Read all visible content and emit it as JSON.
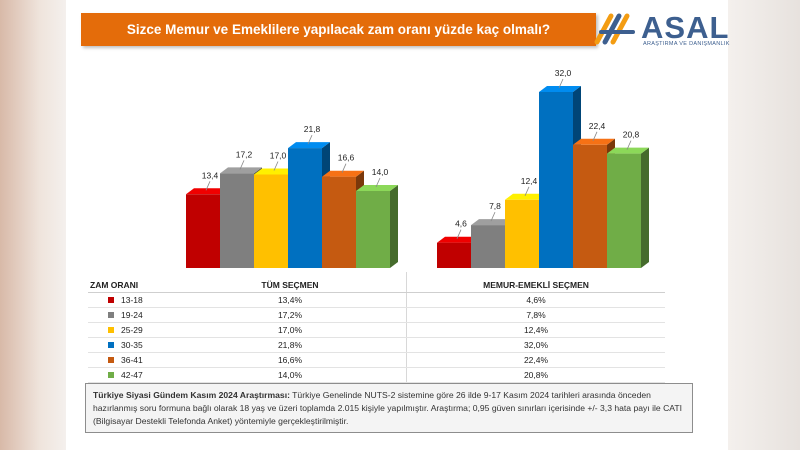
{
  "title": "Sizce Memur ve Emeklilere yapılacak zam oranı yüzde kaç olmalı?",
  "logo": {
    "word": "ASAL",
    "subtitle": "ARAŞTIRMA VE DANIŞMANLIK"
  },
  "chart_data": {
    "type": "bar",
    "categories": [
      "13-18",
      "19-24",
      "25-29",
      "30-35",
      "36-41",
      "42-47"
    ],
    "colors": [
      "#c00000",
      "#7f7f7f",
      "#ffc000",
      "#0070c0",
      "#c55a11",
      "#70ad47"
    ],
    "series": [
      {
        "name": "TÜM SEÇMEN",
        "values": [
          13.4,
          17.2,
          17.0,
          21.8,
          16.6,
          14.0
        ],
        "labels": [
          "13,4",
          "17,2",
          "17,0",
          "21,8",
          "16,6",
          "14,0"
        ]
      },
      {
        "name": "MEMUR-EMEKLİ SEÇMEN",
        "values": [
          4.6,
          7.8,
          12.4,
          32.0,
          22.4,
          20.8
        ],
        "labels": [
          "4,6",
          "7,8",
          "12,4",
          "32,0",
          "22,4",
          "20,8"
        ]
      }
    ],
    "ylim": [
      0,
      32
    ]
  },
  "table": {
    "header": [
      "ZAM ORANI",
      "TÜM SEÇMEN",
      "MEMUR-EMEKLİ SEÇMEN"
    ],
    "rows": [
      {
        "range": "13-18",
        "all": "13,4%",
        "memur": "4,6%"
      },
      {
        "range": "19-24",
        "all": "17,2%",
        "memur": "7,8%"
      },
      {
        "range": "25-29",
        "all": "17,0%",
        "memur": "12,4%"
      },
      {
        "range": "30-35",
        "all": "21,8%",
        "memur": "32,0%"
      },
      {
        "range": "36-41",
        "all": "16,6%",
        "memur": "22,4%"
      },
      {
        "range": "42-47",
        "all": "14,0%",
        "memur": "20,8%"
      }
    ]
  },
  "note": {
    "bold": "Türkiye Siyasi Gündem Kasım 2024 Araştırması:",
    "text": " Türkiye Genelinde  NUTS-2 sistemine göre 26 ilde 9-17 Kasım 2024 tarihleri arasında önceden hazırlanmış soru formuna bağlı olarak 18 yaş ve üzeri toplamda 2.015 kişiyle yapılmıştır. Araştırma; 0,95 güven sınırları içerisinde +/- 3,3 hata payı ile CATI (Bilgisayar Destekli Telefonda  Anket) yöntemiyle gerçekleştirilmiştir."
  }
}
